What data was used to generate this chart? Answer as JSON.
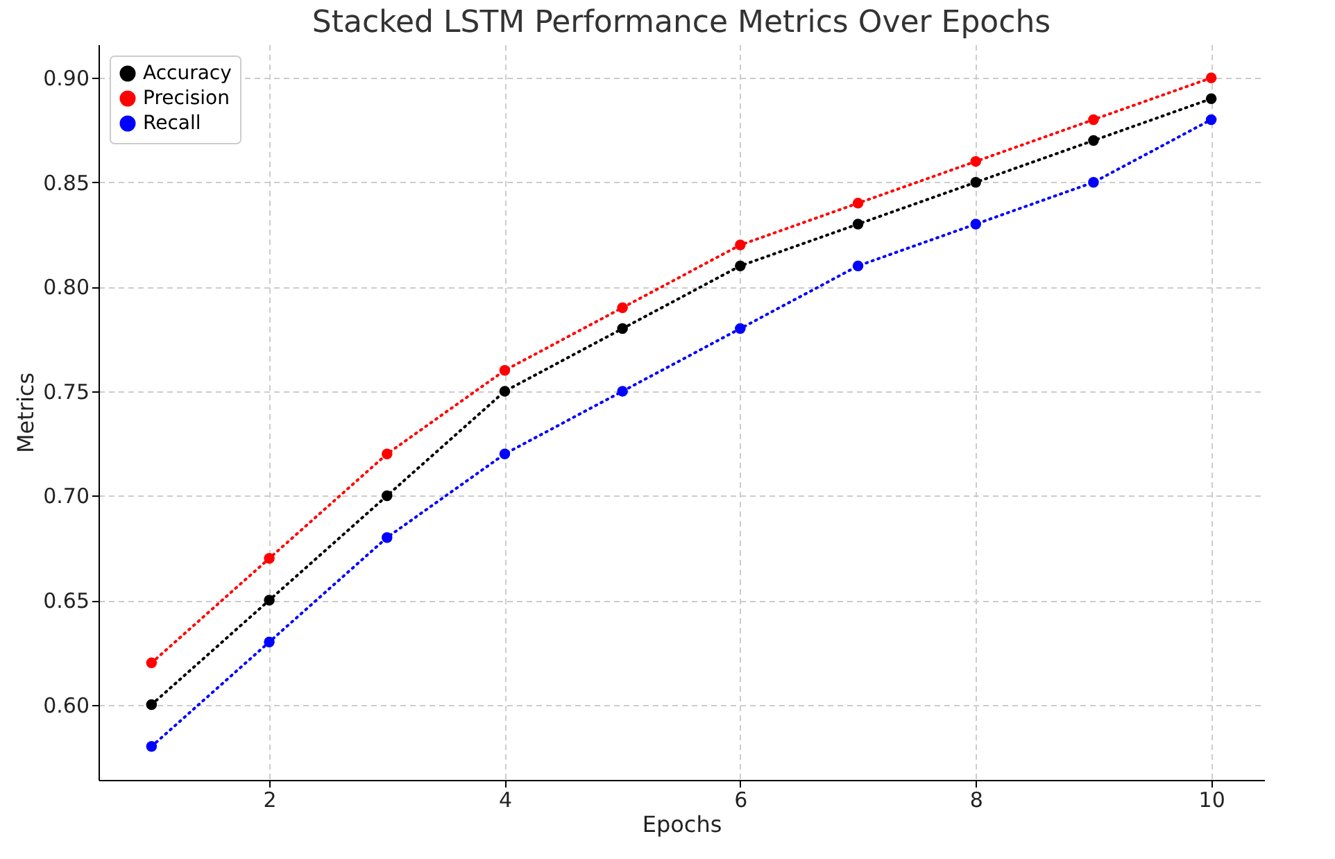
{
  "chart_data": {
    "type": "line",
    "title": "Stacked LSTM Performance Metrics Over Epochs",
    "xlabel": "Epochs",
    "ylabel": "Metrics",
    "x": [
      1,
      2,
      3,
      4,
      5,
      6,
      7,
      8,
      9,
      10
    ],
    "series": [
      {
        "name": "Accuracy",
        "color": "#000000",
        "values": [
          0.6,
          0.65,
          0.7,
          0.75,
          0.78,
          0.81,
          0.83,
          0.85,
          0.87,
          0.89
        ]
      },
      {
        "name": "Precision",
        "color": "#ff0000",
        "values": [
          0.62,
          0.67,
          0.72,
          0.76,
          0.79,
          0.82,
          0.84,
          0.86,
          0.88,
          0.9
        ]
      },
      {
        "name": "Recall",
        "color": "#0000ff",
        "values": [
          0.58,
          0.63,
          0.68,
          0.72,
          0.75,
          0.78,
          0.81,
          0.83,
          0.85,
          0.88
        ]
      }
    ],
    "xlim": [
      0.55,
      10.45
    ],
    "xticks": [
      2,
      4,
      6,
      8,
      10
    ],
    "ylim": [
      0.564,
      0.916
    ],
    "yticks": [
      {
        "value": 0.6,
        "label": "0.60"
      },
      0.65,
      {
        "value": 0.7,
        "label": "0.70"
      },
      0.75,
      {
        "value": 0.8,
        "label": "0.80"
      },
      0.85,
      {
        "value": 0.9,
        "label": "0.90"
      }
    ],
    "grid": true,
    "legend": "top left",
    "marker": "circle",
    "line_style": "dotted"
  }
}
